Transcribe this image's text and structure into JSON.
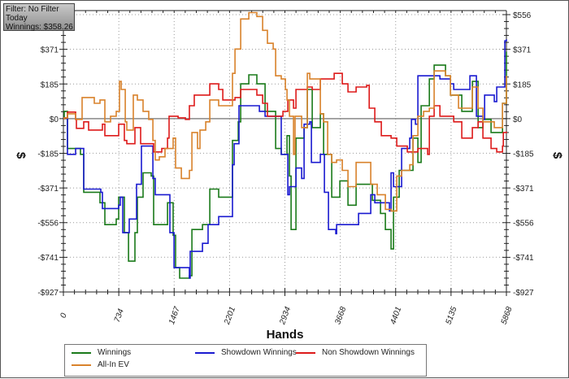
{
  "info_box": {
    "filter": "Filter: No Filter",
    "period": "Today",
    "winnings": "Winnings: $358.26"
  },
  "chart_data": {
    "type": "line",
    "xlabel": "Hands",
    "ylabel": "$",
    "xlim": [
      0,
      5868
    ],
    "ylim": [
      -927,
      556
    ],
    "x_ticks": [
      0,
      734,
      1467,
      2201,
      2934,
      3668,
      4401,
      5135,
      5868
    ],
    "y_ticks": [
      556,
      371,
      185,
      0,
      -185,
      -371,
      -556,
      -741,
      -927
    ],
    "y_tick_labels": [
      "$556",
      "$371",
      "$185",
      "$0",
      "-$185",
      "-$371",
      "-$556",
      "-$741",
      "-$927"
    ],
    "grid": true,
    "legend_placement": "bottom",
    "series": [
      {
        "name": "Winnings",
        "color": "#1a7a1a",
        "points": [
          [
            0,
            0
          ],
          [
            11,
            39
          ],
          [
            54,
            -160
          ],
          [
            226,
            -191
          ],
          [
            269,
            -394
          ],
          [
            485,
            -450
          ],
          [
            549,
            -567
          ],
          [
            700,
            -537
          ],
          [
            732,
            -420
          ],
          [
            808,
            -610
          ],
          [
            862,
            -762
          ],
          [
            948,
            -610
          ],
          [
            980,
            -420
          ],
          [
            1055,
            -290
          ],
          [
            1163,
            -307
          ],
          [
            1195,
            -567
          ],
          [
            1379,
            -450
          ],
          [
            1454,
            -624
          ],
          [
            1486,
            -797
          ],
          [
            1540,
            -853
          ],
          [
            1669,
            -840
          ],
          [
            1702,
            -593
          ],
          [
            1842,
            -567
          ],
          [
            1939,
            -377
          ],
          [
            2057,
            -420
          ],
          [
            2208,
            -420
          ],
          [
            2240,
            -117
          ],
          [
            2316,
            -17
          ],
          [
            2348,
            186
          ],
          [
            2456,
            234
          ],
          [
            2563,
            186
          ],
          [
            2671,
            39
          ],
          [
            2811,
            -160
          ],
          [
            2886,
            -191
          ],
          [
            2962,
            -91
          ],
          [
            2994,
            -307
          ],
          [
            3016,
            -593
          ],
          [
            3080,
            -104
          ],
          [
            3188,
            -48
          ],
          [
            3231,
            156
          ],
          [
            3296,
            -48
          ],
          [
            3403,
            26
          ],
          [
            3446,
            -191
          ],
          [
            3554,
            -420
          ],
          [
            3662,
            -333
          ],
          [
            3770,
            -463
          ],
          [
            3877,
            -351
          ],
          [
            4017,
            -351
          ],
          [
            4093,
            -437
          ],
          [
            4200,
            -507
          ],
          [
            4265,
            -593
          ],
          [
            4340,
            -697
          ],
          [
            4373,
            -420
          ],
          [
            4448,
            -277
          ],
          [
            4631,
            -104
          ],
          [
            4696,
            -234
          ],
          [
            4739,
            69
          ],
          [
            4847,
            212
          ],
          [
            4911,
            286
          ],
          [
            5062,
            229
          ],
          [
            5127,
            126
          ],
          [
            5277,
            39
          ],
          [
            5417,
            199
          ],
          [
            5493,
            -48
          ],
          [
            5557,
            -4
          ],
          [
            5665,
            -74
          ],
          [
            5816,
            82
          ],
          [
            5868,
            358.26
          ]
        ]
      },
      {
        "name": "Showdown Winnings",
        "color": "#1a1ad0",
        "points": [
          [
            0,
            0
          ],
          [
            11,
            4
          ],
          [
            54,
            -191
          ],
          [
            162,
            -160
          ],
          [
            258,
            -160
          ],
          [
            269,
            -377
          ],
          [
            495,
            -394
          ],
          [
            517,
            -481
          ],
          [
            732,
            -463
          ],
          [
            754,
            -420
          ],
          [
            786,
            -610
          ],
          [
            872,
            -537
          ],
          [
            948,
            -537
          ],
          [
            969,
            -351
          ],
          [
            1023,
            -351
          ],
          [
            1034,
            -147
          ],
          [
            1163,
            -147
          ],
          [
            1185,
            -320
          ],
          [
            1217,
            -407
          ],
          [
            1400,
            -407
          ],
          [
            1411,
            -610
          ],
          [
            1465,
            -797
          ],
          [
            1669,
            -853
          ],
          [
            1680,
            -710
          ],
          [
            1809,
            -710
          ],
          [
            1842,
            -667
          ],
          [
            1917,
            -567
          ],
          [
            2057,
            -524
          ],
          [
            2219,
            -524
          ],
          [
            2240,
            -247
          ],
          [
            2262,
            -134
          ],
          [
            2326,
            69
          ],
          [
            2563,
            69
          ],
          [
            2596,
            39
          ],
          [
            2671,
            13
          ],
          [
            2854,
            13
          ],
          [
            2886,
            -191
          ],
          [
            2973,
            -407
          ],
          [
            2994,
            -364
          ],
          [
            3080,
            -264
          ],
          [
            3156,
            -320
          ],
          [
            3188,
            -30
          ],
          [
            3263,
            -17
          ],
          [
            3285,
            -234
          ],
          [
            3403,
            -191
          ],
          [
            3457,
            -394
          ],
          [
            3511,
            -593
          ],
          [
            3608,
            -615
          ],
          [
            3619,
            -567
          ],
          [
            3780,
            -567
          ],
          [
            3909,
            -507
          ],
          [
            4071,
            -407
          ],
          [
            4125,
            -450
          ],
          [
            4319,
            -494
          ],
          [
            4340,
            -290
          ],
          [
            4373,
            -364
          ],
          [
            4480,
            -160
          ],
          [
            4588,
            -104
          ],
          [
            4610,
            -4
          ],
          [
            4663,
            -30
          ],
          [
            4696,
            229
          ],
          [
            4987,
            212
          ],
          [
            5127,
            186
          ],
          [
            5170,
            156
          ],
          [
            5342,
            156
          ],
          [
            5385,
            229
          ],
          [
            5450,
            229
          ],
          [
            5471,
            13
          ],
          [
            5557,
            -4
          ],
          [
            5579,
            126
          ],
          [
            5708,
            91
          ],
          [
            5740,
            169
          ],
          [
            5816,
            169
          ],
          [
            5848,
            416
          ],
          [
            5868,
            424
          ]
        ]
      },
      {
        "name": "Non Showdown Winnings",
        "color": "#dd1a1a",
        "points": [
          [
            0,
            0
          ],
          [
            11,
            4
          ],
          [
            54,
            35
          ],
          [
            162,
            -4
          ],
          [
            172,
            -52
          ],
          [
            269,
            -17
          ],
          [
            334,
            -61
          ],
          [
            517,
            -30
          ],
          [
            549,
            -91
          ],
          [
            732,
            -30
          ],
          [
            808,
            -117
          ],
          [
            840,
            -134
          ],
          [
            948,
            -48
          ],
          [
            1023,
            -134
          ],
          [
            1131,
            -134
          ],
          [
            1195,
            -178
          ],
          [
            1303,
            -160
          ],
          [
            1379,
            -104
          ],
          [
            1400,
            13
          ],
          [
            1519,
            4
          ],
          [
            1616,
            -4
          ],
          [
            1669,
            69
          ],
          [
            1734,
            126
          ],
          [
            1809,
            126
          ],
          [
            1939,
            186
          ],
          [
            2057,
            156
          ],
          [
            2111,
            100
          ],
          [
            2273,
            113
          ],
          [
            2348,
            156
          ],
          [
            2456,
            156
          ],
          [
            2563,
            126
          ],
          [
            2639,
            82
          ],
          [
            2703,
            13
          ],
          [
            2811,
            13
          ],
          [
            2908,
            39
          ],
          [
            2973,
            100
          ],
          [
            3048,
            56
          ],
          [
            3080,
            156
          ],
          [
            3231,
            169
          ],
          [
            3296,
            156
          ],
          [
            3403,
            212
          ],
          [
            3554,
            212
          ],
          [
            3586,
            242
          ],
          [
            3662,
            242
          ],
          [
            3694,
            186
          ],
          [
            3770,
            143
          ],
          [
            3877,
            169
          ],
          [
            4017,
            178
          ],
          [
            4050,
            56
          ],
          [
            4125,
            -17
          ],
          [
            4211,
            -91
          ],
          [
            4340,
            -104
          ],
          [
            4416,
            -147
          ],
          [
            4556,
            -178
          ],
          [
            4696,
            -160
          ],
          [
            4825,
            -191
          ],
          [
            4847,
            13
          ],
          [
            4911,
            69
          ],
          [
            4987,
            13
          ],
          [
            5062,
            13
          ],
          [
            5170,
            -17
          ],
          [
            5277,
            -104
          ],
          [
            5417,
            -48
          ],
          [
            5493,
            -17
          ],
          [
            5557,
            -104
          ],
          [
            5665,
            -160
          ],
          [
            5740,
            -178
          ],
          [
            5816,
            -147
          ],
          [
            5827,
            -74
          ],
          [
            5868,
            -69
          ]
        ]
      },
      {
        "name": "All-In EV",
        "color": "#d9822b",
        "points": [
          [
            0,
            0
          ],
          [
            11,
            4
          ],
          [
            54,
            26
          ],
          [
            162,
            -4
          ],
          [
            248,
            113
          ],
          [
            334,
            113
          ],
          [
            409,
            82
          ],
          [
            485,
            100
          ],
          [
            549,
            -17
          ],
          [
            625,
            13
          ],
          [
            700,
            39
          ],
          [
            743,
            199
          ],
          [
            765,
            156
          ],
          [
            819,
            -17
          ],
          [
            840,
            -61
          ],
          [
            926,
            126
          ],
          [
            980,
            100
          ],
          [
            1055,
            39
          ],
          [
            1131,
            -4
          ],
          [
            1185,
            -117
          ],
          [
            1217,
            -221
          ],
          [
            1271,
            -204
          ],
          [
            1346,
            -160
          ],
          [
            1454,
            -104
          ],
          [
            1486,
            -264
          ],
          [
            1562,
            -320
          ],
          [
            1669,
            -277
          ],
          [
            1702,
            -74
          ],
          [
            1777,
            -160
          ],
          [
            1809,
            -61
          ],
          [
            1885,
            -17
          ],
          [
            1939,
            100
          ],
          [
            2057,
            69
          ],
          [
            2208,
            69
          ],
          [
            2240,
            242
          ],
          [
            2273,
            372
          ],
          [
            2348,
            533
          ],
          [
            2456,
            567
          ],
          [
            2563,
            546
          ],
          [
            2639,
            472
          ],
          [
            2703,
            403
          ],
          [
            2779,
            372
          ],
          [
            2811,
            229
          ],
          [
            2886,
            212
          ],
          [
            2940,
            156
          ],
          [
            2962,
            100
          ],
          [
            2994,
            13
          ],
          [
            3048,
            -191
          ],
          [
            3069,
            13
          ],
          [
            3156,
            -48
          ],
          [
            3231,
            242
          ],
          [
            3263,
            212
          ],
          [
            3403,
            26
          ],
          [
            3446,
            -17
          ],
          [
            3500,
            -191
          ],
          [
            3554,
            -234
          ],
          [
            3619,
            -221
          ],
          [
            3694,
            -277
          ],
          [
            3770,
            -364
          ],
          [
            3877,
            -234
          ],
          [
            4017,
            -234
          ],
          [
            4071,
            -351
          ],
          [
            4157,
            -407
          ],
          [
            4265,
            -485
          ],
          [
            4340,
            -494
          ],
          [
            4416,
            -307
          ],
          [
            4480,
            -277
          ],
          [
            4588,
            -247
          ],
          [
            4631,
            -91
          ],
          [
            4696,
            13
          ],
          [
            4771,
            39
          ],
          [
            4847,
            56
          ],
          [
            4911,
            255
          ],
          [
            5062,
            229
          ],
          [
            5127,
            126
          ],
          [
            5234,
            56
          ],
          [
            5417,
            169
          ],
          [
            5493,
            56
          ],
          [
            5557,
            -17
          ],
          [
            5708,
            -48
          ],
          [
            5816,
            82
          ],
          [
            5868,
            229
          ]
        ]
      }
    ]
  },
  "legend": {
    "items": [
      "Winnings",
      "Showdown Winnings",
      "Non Showdown Winnings",
      "All-In EV"
    ]
  }
}
